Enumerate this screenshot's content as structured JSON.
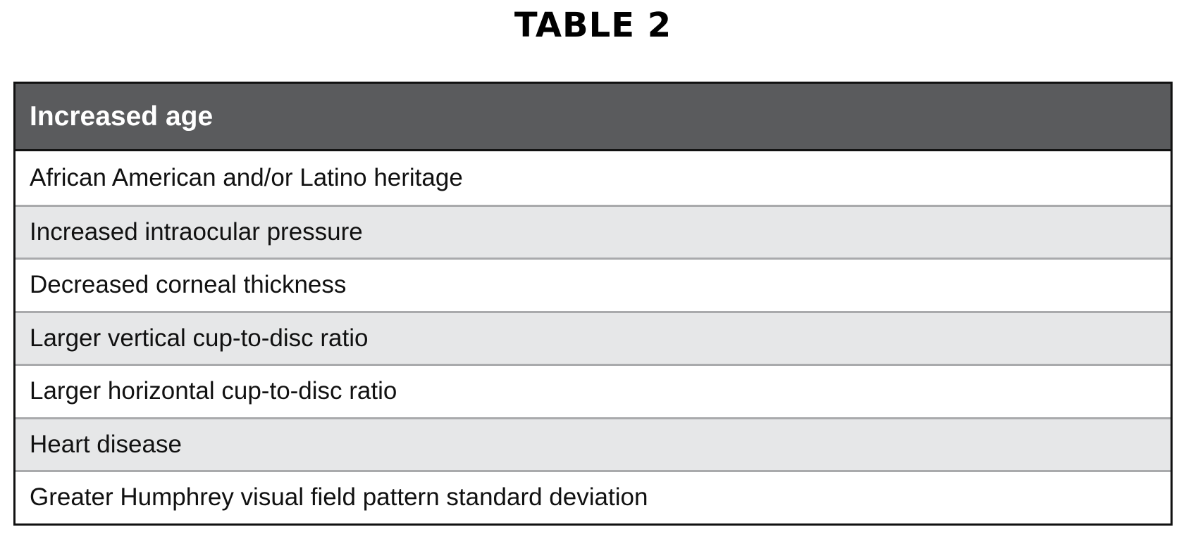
{
  "title": "TABLE 2",
  "table": {
    "header": "Increased age",
    "rows": [
      "African American and/or Latino heritage",
      "Increased intraocular pressure",
      "Decreased corneal thickness",
      "Larger vertical cup-to-disc ratio",
      "Larger horizontal cup-to-disc ratio",
      "Heart disease",
      "Greater Humphrey visual field pattern standard deviation"
    ]
  },
  "colors": {
    "header_bg": "#5a5b5d",
    "alt_row_bg": "#e6e7e8",
    "divider": "#a9aaac"
  }
}
